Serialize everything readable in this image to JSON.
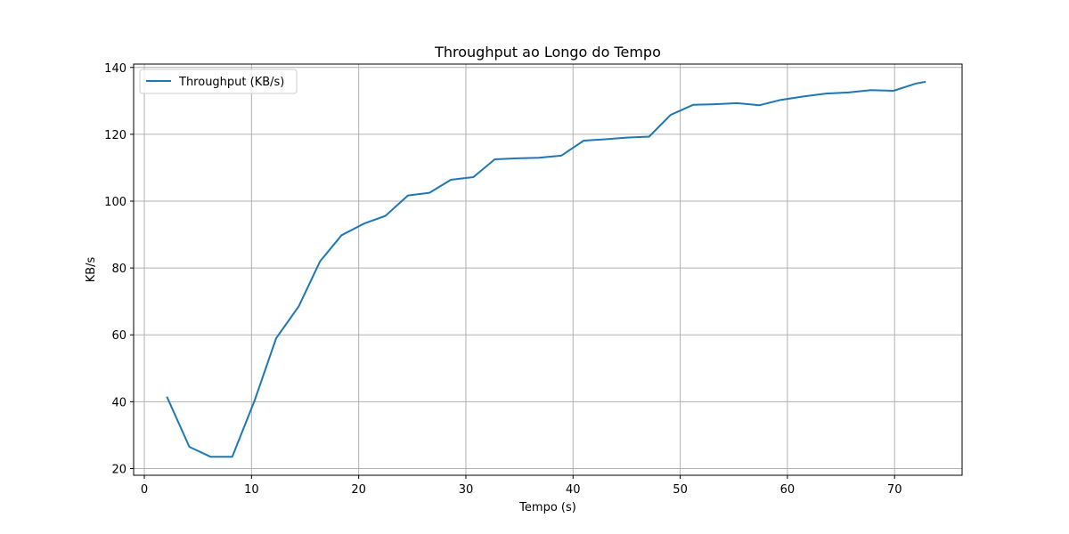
{
  "chart_data": {
    "type": "line",
    "title": "Throughput ao Longo do Tempo",
    "xlabel": "Tempo (s)",
    "ylabel": "KB/s",
    "xlim": [
      -1,
      76.3
    ],
    "ylim": [
      18,
      141
    ],
    "xticks": [
      0,
      10,
      20,
      30,
      40,
      50,
      60,
      70
    ],
    "yticks": [
      20,
      40,
      60,
      80,
      100,
      120,
      140
    ],
    "grid": true,
    "legend": {
      "placement": "top-left"
    },
    "series": [
      {
        "name": "Throughput (KB/s)",
        "color": "#1f77b4",
        "x": [
          2.1,
          4.2,
          6.2,
          8.2,
          10.3,
          12.3,
          14.4,
          16.4,
          18.4,
          20.5,
          22.5,
          24.6,
          26.6,
          28.6,
          30.7,
          32.7,
          34.8,
          36.8,
          38.9,
          41.0,
          43.0,
          45.0,
          47.1,
          49.1,
          51.2,
          53.2,
          55.3,
          57.4,
          59.4,
          61.5,
          63.6,
          65.7,
          67.8,
          69.9,
          72.0,
          72.9
        ],
        "y": [
          41.5,
          26.5,
          23.5,
          23.5,
          40.5,
          59.0,
          68.5,
          82.0,
          89.8,
          93.3,
          95.6,
          101.7,
          102.5,
          106.4,
          107.2,
          112.5,
          112.8,
          113.0,
          113.6,
          118.1,
          118.5,
          119.0,
          119.3,
          125.8,
          128.8,
          129.0,
          129.3,
          128.7,
          130.3,
          131.3,
          132.2,
          132.5,
          133.2,
          133.0,
          135.2,
          135.7
        ]
      }
    ]
  }
}
